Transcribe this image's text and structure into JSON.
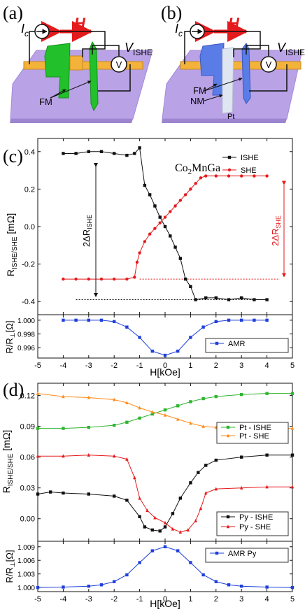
{
  "panel_a": {
    "label": "(a)",
    "current": "I",
    "current_sub": "c",
    "field": "H",
    "voltage": "V",
    "voltage_sub": "ISHE",
    "fm_label": "FM",
    "meter_symbol": "V"
  },
  "panel_b": {
    "label": "(b)",
    "current": "I",
    "current_sub": "c",
    "field": "H",
    "voltage": "V",
    "voltage_sub": "ISHE",
    "fm_label": "FM",
    "nm_label": "NM",
    "pt_label": "Pt",
    "meter_symbol": "V"
  },
  "panel_c": {
    "label": "(c)",
    "material": "Co",
    "material_sub": "2",
    "material_rest": "MnGa",
    "ylabel_main": "R",
    "ylabel_sub": "ISHE/SHE",
    "ylabel_unit": " [mΩ]",
    "annot_left": "2ΔR",
    "annot_left_sub": "ISHE",
    "annot_right": "2ΔR",
    "annot_right_sub": "SHE",
    "amr_ylabel_main": "R/R",
    "amr_ylabel_sub": "⊥",
    "amr_ylabel_unit": "[Ω]",
    "xlabel": "H[kOe]",
    "colors": {
      "ishe": "#111111",
      "she": "#e41a1c",
      "amr": "#1f3fdb"
    }
  },
  "panel_d": {
    "label": "(d)",
    "ylabel_main": "R",
    "ylabel_sub": "ISHE/SHE",
    "ylabel_unit": " [mΩ]",
    "amr_ylabel_main": "R/R",
    "amr_ylabel_sub": "⊥",
    "amr_ylabel_unit": "[Ω]",
    "xlabel": "H[kOe]",
    "colors": {
      "pt_ishe": "#2fb52f",
      "pt_she": "#ff8c1a",
      "py_ishe": "#111111",
      "py_she": "#e41a1c",
      "amr": "#1f3fdb"
    }
  },
  "chart_data": [
    {
      "type": "line",
      "panel": "c-main",
      "xlim": [
        -5,
        5
      ],
      "ylim": [
        -0.47,
        0.47
      ],
      "xticks": [
        -5,
        -4,
        -3,
        -2,
        -1,
        0,
        1,
        2,
        3,
        4,
        5
      ],
      "yticks": [
        -0.4,
        -0.2,
        0.0,
        0.2,
        0.4
      ],
      "ytick_labels": [
        "-0.4",
        "-0.2",
        "0.0",
        "0.2",
        "0.4"
      ],
      "legend_position": "top-right",
      "series": [
        {
          "name": "ISHE",
          "marker": "square",
          "color": "#111111",
          "x": [
            -4.0,
            -3.5,
            -3.0,
            -2.5,
            -2.0,
            -1.5,
            -1.2,
            -1.0,
            -0.8,
            -0.6,
            -0.4,
            -0.2,
            0.0,
            0.2,
            0.4,
            0.6,
            0.8,
            1.0,
            1.2,
            1.6,
            2.0,
            2.5,
            3.0,
            3.5,
            4.0
          ],
          "y": [
            0.39,
            0.39,
            0.4,
            0.4,
            0.39,
            0.38,
            0.39,
            0.42,
            0.22,
            0.17,
            0.11,
            0.05,
            0.0,
            -0.05,
            -0.11,
            -0.17,
            -0.28,
            -0.32,
            -0.39,
            -0.38,
            -0.38,
            -0.39,
            -0.38,
            -0.39,
            -0.39
          ]
        },
        {
          "name": "SHE",
          "marker": "circle",
          "color": "#e41a1c",
          "x": [
            -4.0,
            -3.5,
            -3.0,
            -2.5,
            -2.0,
            -1.5,
            -1.2,
            -1.1,
            -1.0,
            -0.8,
            -0.6,
            -0.4,
            -0.2,
            0.0,
            0.2,
            0.4,
            0.6,
            0.8,
            1.0,
            1.2,
            1.4,
            1.6,
            2.0,
            2.5,
            3.0,
            3.5,
            4.0
          ],
          "y": [
            -0.28,
            -0.28,
            -0.28,
            -0.28,
            -0.28,
            -0.28,
            -0.27,
            -0.19,
            -0.14,
            -0.08,
            -0.04,
            -0.01,
            0.02,
            0.05,
            0.08,
            0.11,
            0.14,
            0.17,
            0.2,
            0.23,
            0.26,
            0.27,
            0.27,
            0.27,
            0.27,
            0.27,
            0.27
          ]
        }
      ]
    },
    {
      "type": "line",
      "panel": "c-amr",
      "xlim": [
        -5,
        5
      ],
      "ylim": [
        0.9945,
        1.0008
      ],
      "xticks": [
        -5,
        -4,
        -3,
        -2,
        -1,
        0,
        1,
        2,
        3,
        4,
        5
      ],
      "yticks": [
        0.996,
        0.998,
        1.0
      ],
      "ytick_labels": [
        "0.996",
        "0.998",
        "1.000"
      ],
      "legend_position": "bottom-right",
      "series": [
        {
          "name": "AMR",
          "marker": "square",
          "color": "#1f3fdb",
          "x": [
            -4.0,
            -3.5,
            -3.0,
            -2.5,
            -2.0,
            -1.5,
            -1.0,
            -0.5,
            0.0,
            0.5,
            1.0,
            1.5,
            2.0,
            2.5,
            3.0,
            3.5,
            4.0
          ],
          "y": [
            1.0,
            1.0,
            1.0,
            1.0,
            0.9998,
            0.999,
            0.9975,
            0.9955,
            0.9949,
            0.9955,
            0.9975,
            0.999,
            0.9998,
            1.0,
            1.0,
            1.0,
            1.0
          ]
        }
      ]
    },
    {
      "type": "line",
      "panel": "d-main",
      "xlim": [
        -5,
        5
      ],
      "ylim": [
        -0.022,
        0.132
      ],
      "xticks": [
        -5,
        -4,
        -3,
        -2,
        -1,
        0,
        1,
        2,
        3,
        4,
        5
      ],
      "yticks": [
        0.0,
        0.03,
        0.06,
        0.09,
        0.12
      ],
      "ytick_labels": [
        "0.00",
        "0.03",
        "0.06",
        "0.09",
        "0.12"
      ],
      "series": [
        {
          "name": "Pt - ISHE",
          "marker": "square",
          "color": "#2fb52f",
          "x": [
            -5,
            -4,
            -3,
            -2,
            -1.5,
            -1,
            -0.5,
            0,
            0.5,
            1,
            1.5,
            2,
            3,
            4,
            5
          ],
          "y": [
            0.088,
            0.088,
            0.089,
            0.091,
            0.094,
            0.098,
            0.102,
            0.106,
            0.11,
            0.114,
            0.117,
            0.119,
            0.121,
            0.122,
            0.122
          ]
        },
        {
          "name": "Pt - SHE",
          "marker": "triangle",
          "color": "#ff8c1a",
          "x": [
            -5,
            -4,
            -3,
            -2,
            -1.5,
            -1,
            -0.5,
            0,
            0.5,
            1,
            1.5,
            2,
            3,
            4,
            5
          ],
          "y": [
            0.122,
            0.119,
            0.118,
            0.116,
            0.113,
            0.108,
            0.104,
            0.101,
            0.097,
            0.093,
            0.09,
            0.089,
            0.088,
            0.088,
            0.088
          ]
        },
        {
          "name": "Py - ISHE",
          "marker": "square",
          "color": "#111111",
          "x": [
            -5,
            -4.5,
            -4,
            -3,
            -2,
            -1.5,
            -1,
            -0.8,
            -0.5,
            -0.2,
            0,
            0.3,
            0.6,
            1.0,
            1.3,
            1.6,
            2.0,
            3.0,
            4.0,
            5.0
          ],
          "y": [
            0.024,
            0.026,
            0.025,
            0.024,
            0.022,
            0.018,
            0.002,
            -0.008,
            -0.011,
            -0.012,
            -0.008,
            0.005,
            0.02,
            0.035,
            0.045,
            0.052,
            0.057,
            0.06,
            0.062,
            0.062
          ]
        },
        {
          "name": "Py - SHE",
          "marker": "triangle",
          "color": "#e41a1c",
          "x": [
            -5,
            -4,
            -3,
            -2,
            -1.5,
            -1.2,
            -1,
            -0.7,
            -0.4,
            0,
            0.3,
            0.6,
            0.9,
            1.2,
            1.4,
            1.6,
            2,
            3,
            4,
            5
          ],
          "y": [
            0.061,
            0.061,
            0.062,
            0.061,
            0.058,
            0.04,
            0.02,
            0.008,
            0.001,
            -0.004,
            -0.01,
            -0.013,
            -0.011,
            -0.002,
            0.01,
            0.025,
            0.029,
            0.03,
            0.031,
            0.031
          ]
        }
      ]
    },
    {
      "type": "line",
      "panel": "d-amr",
      "xlim": [
        -5,
        5
      ],
      "ylim": [
        0.9991,
        1.0102
      ],
      "xticks": [
        -5,
        -4,
        -3,
        -2,
        -1,
        0,
        1,
        2,
        3,
        4,
        5
      ],
      "yticks": [
        1.0,
        1.003,
        1.006,
        1.009
      ],
      "ytick_labels": [
        "1.000",
        "1.003",
        "1.006",
        "1.009"
      ],
      "legend_position": "top-right",
      "series": [
        {
          "name": "AMR Py",
          "marker": "square",
          "color": "#1f3fdb",
          "x": [
            -5,
            -4,
            -3,
            -2.5,
            -2,
            -1.5,
            -1,
            -0.5,
            0,
            0.5,
            1,
            1.5,
            2,
            2.5,
            3,
            4,
            5
          ],
          "y": [
            1.0,
            1.0001,
            1.0003,
            1.0006,
            1.0013,
            1.0028,
            1.0055,
            1.0081,
            1.009,
            1.0081,
            1.0055,
            1.0028,
            1.0013,
            1.0006,
            1.0003,
            1.0001,
            1.0
          ]
        }
      ]
    }
  ]
}
